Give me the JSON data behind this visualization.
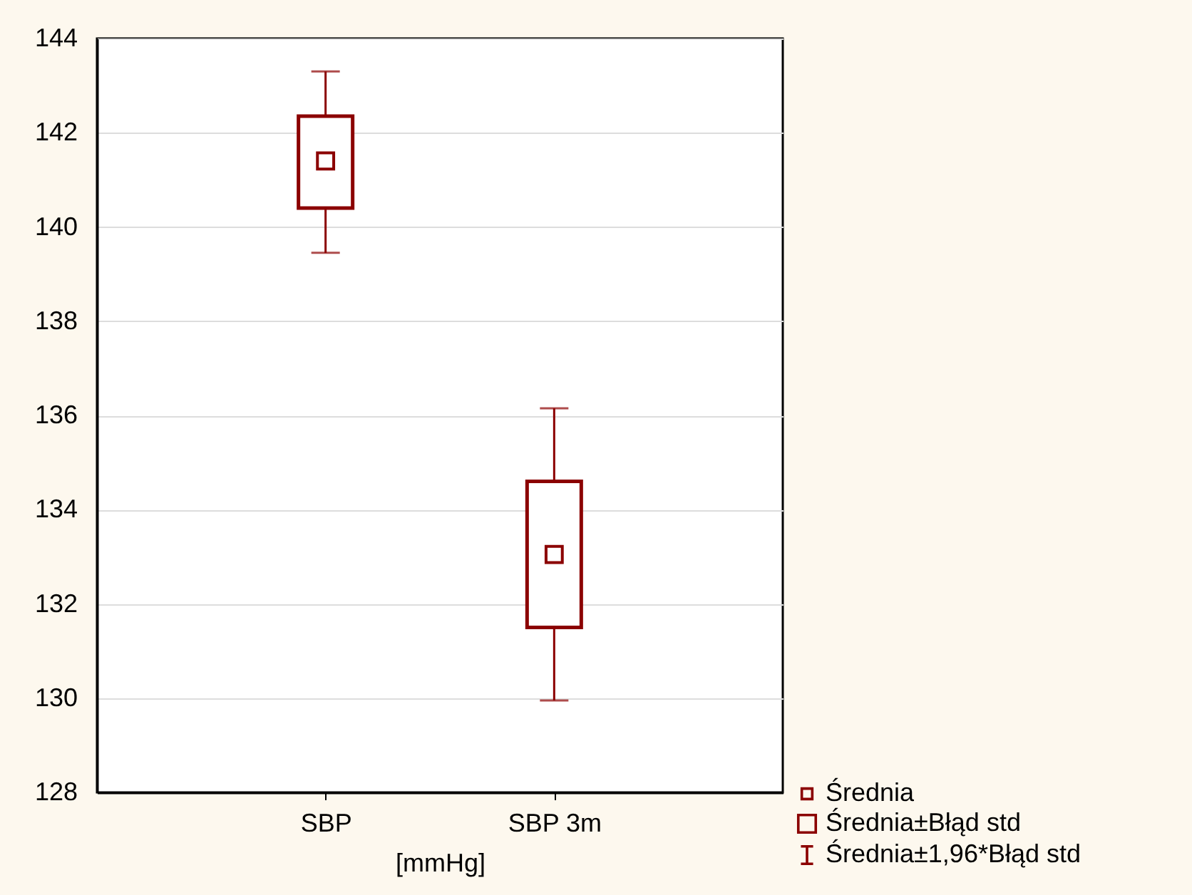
{
  "chart_data": {
    "type": "box",
    "xlabel": "[mmHg]",
    "categories": [
      "SBP",
      "SBP 3m"
    ],
    "ylim": [
      128,
      144
    ],
    "yticks": [
      128,
      130,
      132,
      134,
      136,
      138,
      140,
      142,
      144
    ],
    "grid": "y",
    "color": "#8b0000",
    "boxes": [
      {
        "low": 139.45,
        "q1": 140.4,
        "q3": 142.35,
        "high": 143.3,
        "mean": 141.4
      },
      {
        "low": 129.95,
        "q1": 131.5,
        "q3": 134.6,
        "high": 136.15,
        "mean": 133.05
      }
    ],
    "annotations": [
      "Średnia",
      "Średnia±Błąd std",
      "Średnia±1,96*Błąd std"
    ]
  }
}
